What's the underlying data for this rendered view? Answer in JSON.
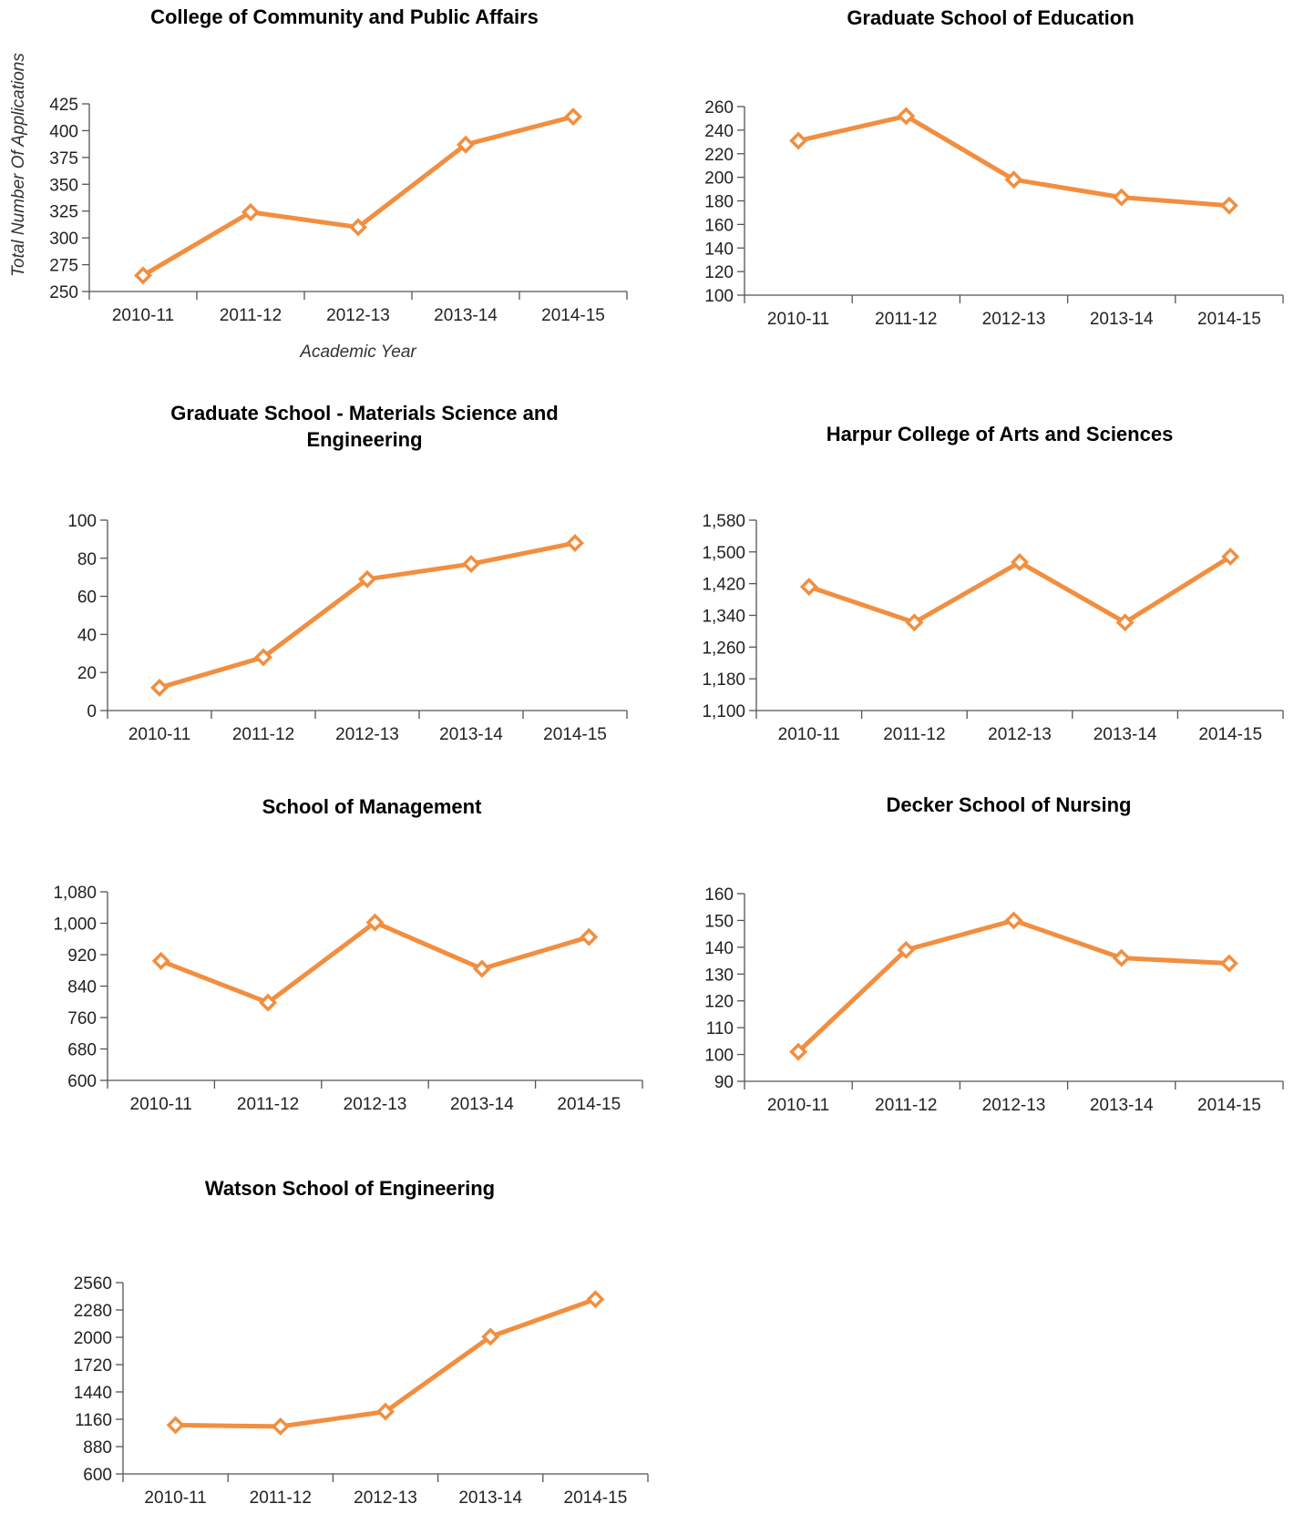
{
  "colors": {
    "line": "#F28E3F",
    "axis": "#555555",
    "marker_fill": "#ffffff"
  },
  "chart_data": [
    {
      "type": "line",
      "title": "College of Community and Public Affairs",
      "ylabel": "Total Number Of Applications",
      "xlabel": "Academic Year",
      "categories": [
        "2010-11",
        "2011-12",
        "2012-13",
        "2013-14",
        "2014-15"
      ],
      "values": [
        265,
        324,
        310,
        387,
        413
      ],
      "ylim": [
        250,
        425
      ],
      "yticks": [
        "250",
        "275",
        "300",
        "325",
        "350",
        "375",
        "400",
        "425"
      ],
      "grid": false
    },
    {
      "type": "line",
      "title": "Graduate School of Education",
      "categories": [
        "2010-11",
        "2011-12",
        "2012-13",
        "2013-14",
        "2014-15"
      ],
      "values": [
        231,
        252,
        198,
        183,
        176
      ],
      "ylim": [
        100,
        260
      ],
      "yticks": [
        "100",
        "120",
        "140",
        "160",
        "180",
        "200",
        "220",
        "240",
        "260"
      ],
      "grid": false
    },
    {
      "type": "line",
      "title": "Graduate School - Materials Science and Engineering",
      "categories": [
        "2010-11",
        "2011-12",
        "2012-13",
        "2013-14",
        "2014-15"
      ],
      "values": [
        12,
        28,
        69,
        77,
        88
      ],
      "ylim": [
        0,
        100
      ],
      "yticks": [
        "0",
        "20",
        "40",
        "60",
        "80",
        "100"
      ],
      "grid": false
    },
    {
      "type": "line",
      "title": "Harpur College of Arts and Sciences",
      "categories": [
        "2010-11",
        "2011-12",
        "2012-13",
        "2013-14",
        "2014-15"
      ],
      "values": [
        1412,
        1322,
        1474,
        1322,
        1488
      ],
      "ylim": [
        1100,
        1580
      ],
      "yticks": [
        "1,100",
        "1,180",
        "1,260",
        "1,340",
        "1,420",
        "1,500",
        "1,580"
      ],
      "grid": false
    },
    {
      "type": "line",
      "title": "School of Management",
      "categories": [
        "2010-11",
        "2011-12",
        "2012-13",
        "2013-14",
        "2014-15"
      ],
      "values": [
        904,
        798,
        1002,
        884,
        965
      ],
      "ylim": [
        600,
        1080
      ],
      "yticks": [
        "600",
        "680",
        "760",
        "840",
        "920",
        "1,000",
        "1,080"
      ],
      "grid": false
    },
    {
      "type": "line",
      "title": "Decker School of Nursing",
      "categories": [
        "2010-11",
        "2011-12",
        "2012-13",
        "2013-14",
        "2014-15"
      ],
      "values": [
        101,
        139,
        150,
        136,
        134
      ],
      "ylim": [
        90,
        160
      ],
      "yticks": [
        "90",
        "100",
        "110",
        "120",
        "130",
        "140",
        "150",
        "160"
      ],
      "grid": false
    },
    {
      "type": "line",
      "title": "Watson School of Engineering",
      "categories": [
        "2010-11",
        "2011-12",
        "2012-13",
        "2013-14",
        "2014-15"
      ],
      "values": [
        1100,
        1086,
        1238,
        2006,
        2390
      ],
      "ylim": [
        600,
        2560
      ],
      "yticks": [
        "600",
        "880",
        "1160",
        "1440",
        "1720",
        "2000",
        "2280",
        "2560"
      ],
      "grid": false
    }
  ]
}
